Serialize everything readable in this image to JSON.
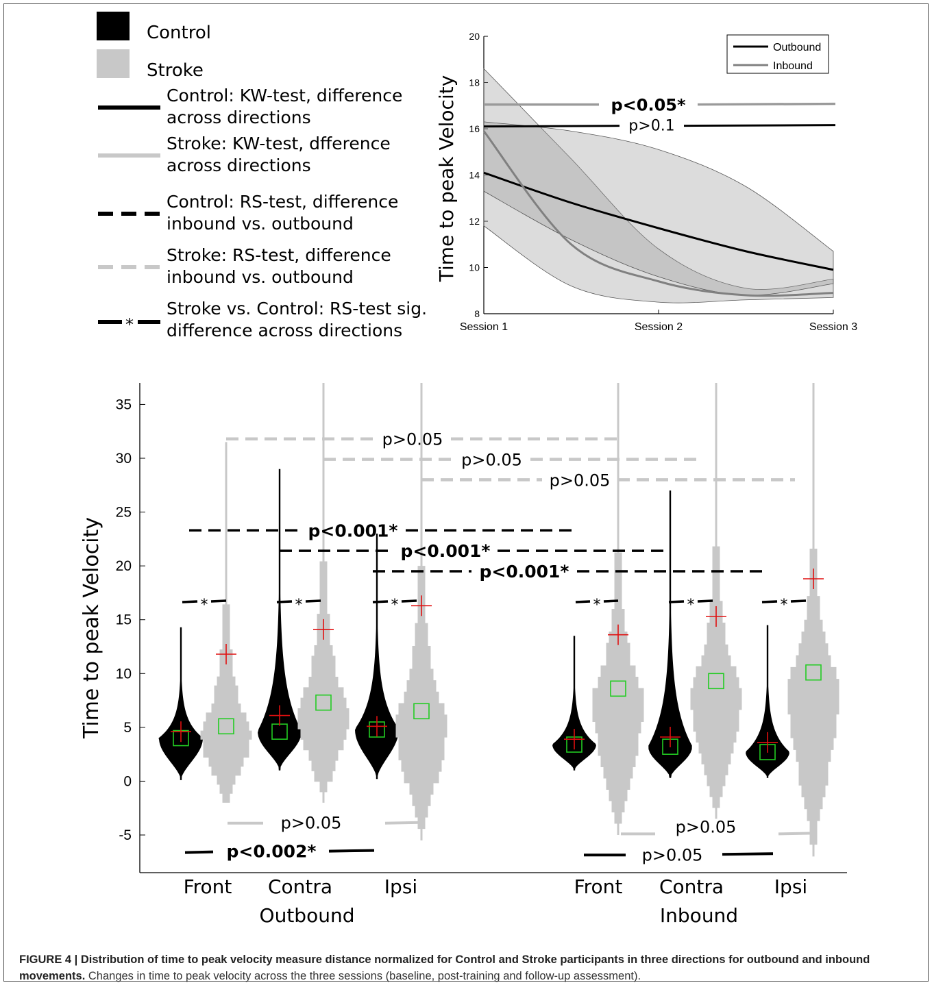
{
  "legend": {
    "items": [
      {
        "label": "Control",
        "style": "black-box"
      },
      {
        "label": "Stroke",
        "style": "gray-box"
      },
      {
        "label": "Control: KW-test, difference across directions",
        "lines": [
          "Control: KW-test, difference",
          "across directions"
        ],
        "style": "black-solid"
      },
      {
        "label": "Stroke: KW-test, dfference across directions",
        "lines": [
          "Stroke: KW-test, dfference",
          "across directions"
        ],
        "style": "gray-solid"
      },
      {
        "label": "Control: RS-test, difference inbound vs. outbound",
        "lines": [
          "Control: RS-test, difference",
          "inbound vs. outbound"
        ],
        "style": "black-dashed"
      },
      {
        "label": "Stroke: RS-test, difference inbound vs. outbound",
        "lines": [
          "Stroke: RS-test, difference",
          "inbound vs. outbound"
        ],
        "style": "gray-dashed"
      },
      {
        "label": "Stroke vs. Control: RS-test sig. difference across directions",
        "lines": [
          "Stroke vs. Control: RS-test sig.",
          "difference across directions"
        ],
        "style": "black-star",
        "symbol": "*"
      }
    ]
  },
  "chart_data": [
    {
      "type": "line",
      "ylabel": "Time to peak Velocity",
      "xlabel": "",
      "categories": [
        "Session 1",
        "Session 2",
        "Session 3"
      ],
      "x": [
        1,
        1.5,
        2,
        2.5,
        3
      ],
      "ylim": [
        8,
        20
      ],
      "yticks": [
        8,
        10,
        12,
        14,
        16,
        18,
        20
      ],
      "legend_position": "top-right",
      "series": [
        {
          "name": "Outbound",
          "color": "#000000",
          "values": [
            14.1,
            12.8,
            11.7,
            10.7,
            9.9
          ],
          "band_lower": [
            13.3,
            11.2,
            9.6,
            8.8,
            9.3
          ],
          "band_upper": [
            16.3,
            15.9,
            15.1,
            13.5,
            10.7
          ]
        },
        {
          "name": "Inbound",
          "color": "#808080",
          "values": [
            15.9,
            11.0,
            9.4,
            8.8,
            8.9
          ],
          "band_lower": [
            11.8,
            9.2,
            8.5,
            8.6,
            8.7
          ],
          "band_upper": [
            18.6,
            14.7,
            10.8,
            9.1,
            9.5
          ]
        }
      ],
      "annotations": [
        {
          "text": "p<0.05*",
          "bold": true,
          "y": 17.05,
          "color": "#999999"
        },
        {
          "text": "p>0.1",
          "bold": false,
          "y": 16.1,
          "color": "#000000"
        }
      ]
    },
    {
      "type": "violin",
      "ylabel": "Time to peak Velocity",
      "ylim": [
        -8.5,
        37
      ],
      "yticks": [
        -5,
        0,
        5,
        10,
        15,
        20,
        25,
        30,
        35
      ],
      "groups": [
        {
          "label": "Outbound",
          "directions": [
            "Front",
            "Contra",
            "Ipsi"
          ]
        },
        {
          "label": "Inbound",
          "directions": [
            "Front",
            "Contra",
            "Ipsi"
          ]
        }
      ],
      "series": [
        {
          "name": "Control",
          "color": "#000000",
          "violins": [
            {
              "group": "Outbound",
              "direction": "Front",
              "median": 4.0,
              "mean": 4.6,
              "min": 0.1,
              "max": 14.3
            },
            {
              "group": "Outbound",
              "direction": "Contra",
              "median": 4.6,
              "mean": 6.1,
              "min": 1.0,
              "max": 29.0
            },
            {
              "group": "Outbound",
              "direction": "Ipsi",
              "median": 4.8,
              "mean": 5.1,
              "min": 0.2,
              "max": 23.0
            },
            {
              "group": "Inbound",
              "direction": "Front",
              "median": 3.4,
              "mean": 3.9,
              "min": 1.0,
              "max": 13.5
            },
            {
              "group": "Inbound",
              "direction": "Contra",
              "median": 3.2,
              "mean": 4.1,
              "min": 0.3,
              "max": 27.0
            },
            {
              "group": "Inbound",
              "direction": "Ipsi",
              "median": 2.7,
              "mean": 3.6,
              "min": 0.3,
              "max": 14.5
            }
          ]
        },
        {
          "name": "Stroke",
          "color": "#c8c8c8",
          "violins": [
            {
              "group": "Outbound",
              "direction": "Front",
              "median": 5.1,
              "mean": 11.8,
              "min": -2.0,
              "max": 31.5
            },
            {
              "group": "Outbound",
              "direction": "Contra",
              "median": 7.3,
              "mean": 14.1,
              "min": -2.0,
              "max": 37.0
            },
            {
              "group": "Outbound",
              "direction": "Ipsi",
              "median": 6.5,
              "mean": 16.3,
              "min": -5.5,
              "max": 37.0
            },
            {
              "group": "Inbound",
              "direction": "Front",
              "median": 8.6,
              "mean": 13.6,
              "min": -5.0,
              "max": 37.0
            },
            {
              "group": "Inbound",
              "direction": "Contra",
              "median": 9.3,
              "mean": 15.3,
              "min": -3.5,
              "max": 37.0
            },
            {
              "group": "Inbound",
              "direction": "Ipsi",
              "median": 10.1,
              "mean": 18.8,
              "min": -7.0,
              "max": 37.0
            }
          ]
        }
      ],
      "markers": {
        "median": "green square",
        "mean": "red cross"
      },
      "annotations": [
        {
          "text": "p>0.05",
          "style": "gray-dashed",
          "y": 31.8,
          "span": [
            "Outbound Front",
            "Inbound Front"
          ]
        },
        {
          "text": "p>0.05",
          "style": "gray-dashed",
          "y": 29.9,
          "span": [
            "Outbound Contra",
            "Inbound Contra"
          ]
        },
        {
          "text": "p>0.05",
          "style": "gray-dashed",
          "y": 28.0,
          "span": [
            "Outbound Ipsi",
            "Inbound Ipsi"
          ]
        },
        {
          "text": "p<0.001*",
          "style": "black-dashed",
          "bold": true,
          "y": 23.3,
          "span": [
            "Outbound Front",
            "Inbound Front"
          ]
        },
        {
          "text": "p<0.001*",
          "style": "black-dashed",
          "bold": true,
          "y": 21.4,
          "span": [
            "Outbound Contra",
            "Inbound Contra"
          ]
        },
        {
          "text": "p<0.001*",
          "style": "black-dashed",
          "bold": true,
          "y": 19.5,
          "span": [
            "Outbound Ipsi",
            "Inbound Ipsi"
          ]
        },
        {
          "text": "*",
          "style": "black-star",
          "y": 16.7,
          "span": [
            "Outbound Front Control",
            "Outbound Front Stroke"
          ]
        },
        {
          "text": "*",
          "style": "black-star",
          "y": 16.7,
          "span": [
            "Outbound Contra Control",
            "Outbound Contra Stroke"
          ]
        },
        {
          "text": "*",
          "style": "black-star",
          "y": 16.7,
          "span": [
            "Outbound Ipsi Control",
            "Outbound Ipsi Stroke"
          ]
        },
        {
          "text": "*",
          "style": "black-star",
          "y": 16.7,
          "span": [
            "Inbound Front Control",
            "Inbound Front Stroke"
          ]
        },
        {
          "text": "*",
          "style": "black-star",
          "y": 16.7,
          "span": [
            "Inbound Contra Control",
            "Inbound Contra Stroke"
          ]
        },
        {
          "text": "*",
          "style": "black-star",
          "y": 16.7,
          "span": [
            "Inbound Ipsi Control",
            "Inbound Ipsi Stroke"
          ]
        },
        {
          "text": "p>0.05",
          "style": "gray-solid",
          "y": -3.9,
          "group": "Outbound"
        },
        {
          "text": "p<0.002*",
          "style": "black-solid",
          "bold": true,
          "y": -6.5,
          "group": "Outbound"
        },
        {
          "text": "p>0.05",
          "style": "gray-solid",
          "y": -4.9,
          "group": "Inbound"
        },
        {
          "text": "p>0.05",
          "style": "black-solid",
          "y": -6.8,
          "group": "Inbound"
        }
      ]
    }
  ],
  "caption": {
    "bold": "FIGURE 4 | Distribution of time to peak velocity measure distance normalized for Control and Stroke participants in three directions for outbound and inbound movements.",
    "text": " Changes in time to peak velocity across the three sessions (baseline, post-training and follow-up assessment)."
  }
}
